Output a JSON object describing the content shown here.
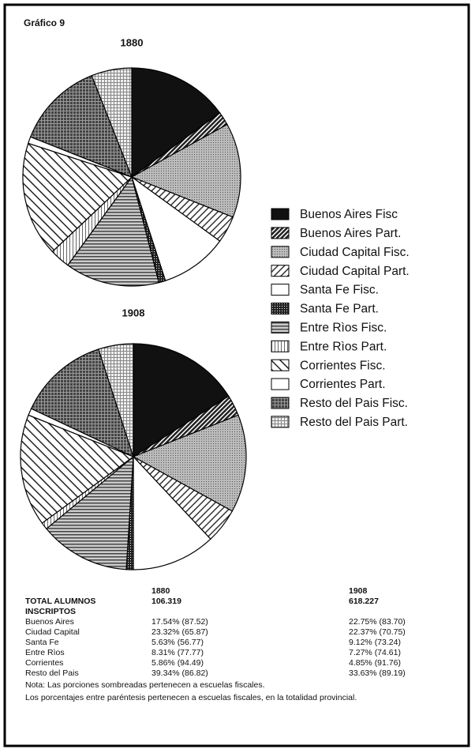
{
  "label": "Gráfico 9",
  "chart_data": {
    "type": "pie",
    "categories": [
      "Buenos Aires Fisc",
      "Buenos Aires Part.",
      "Ciudad Capital Fisc.",
      "Ciudad Capital Part.",
      "Santa Fe Fisc.",
      "Santa Fe Part.",
      "Entre Rìos Fisc.",
      "Entre Rìos Part.",
      "Corrientes Fisc.",
      "Corrientes Part.",
      "Resto del Pais Fisc.",
      "Resto del Pais Part."
    ],
    "series": [
      {
        "name": "1880",
        "values": [
          15,
          2,
          14,
          4,
          10,
          1,
          14,
          3,
          17,
          1,
          13,
          6
        ]
      },
      {
        "name": "1908",
        "values": [
          16,
          3,
          14,
          5,
          12,
          1,
          13,
          1,
          16,
          1,
          13,
          5
        ]
      }
    ]
  },
  "table": {
    "header": [
      "1880",
      "1908"
    ],
    "rows": [
      [
        "TOTAL ALUMNOS INSCRIPTOS",
        "106.319",
        "618.227"
      ],
      [
        "Buenos Aires",
        "17.54% (87.52)",
        "22.75% (83.70)"
      ],
      [
        "Ciudad Capital",
        "23.32% (65.87)",
        "22.37% (70.75)"
      ],
      [
        "Santa Fe",
        "5.63% (56.77)",
        "9.12% (73.24)"
      ],
      [
        "Entre Rìos",
        "8.31% (77.77)",
        "7.27% (74.61)"
      ],
      [
        "Corrientes",
        "5.86% (94.49)",
        "4.85% (91.76)"
      ],
      [
        "Resto del Pais",
        "39.34% (86.82)",
        "33.63% (89.19)"
      ]
    ],
    "notes": [
      "Nota: Las porciones sombreadas pertenecen a escuelas fiscales.",
      "Los porcentajes entre paréntesis pertenecen a escuelas fiscales, en la totalidad provincial."
    ]
  }
}
